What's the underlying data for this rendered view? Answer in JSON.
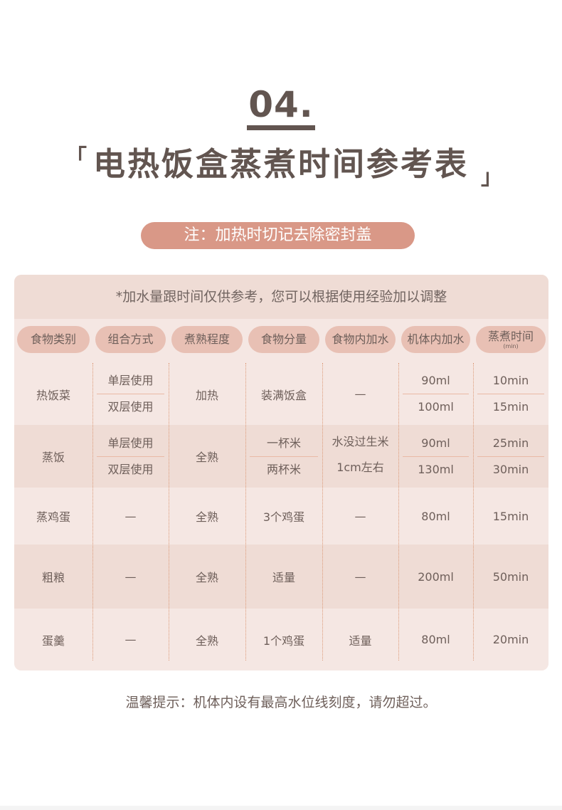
{
  "section_number": "04.",
  "title": "电热饭盒蒸煮时间参考表",
  "bracket_open": "「",
  "bracket_close": "」",
  "note": "注：加热时切记去除密封盖",
  "table": {
    "subtitle": "*加水量跟时间仅供参考，您可以根据使用经验加以调整",
    "headers": [
      "食物类别",
      "组合方式",
      "煮熟程度",
      "食物分量",
      "食物内加水",
      "机体内加水",
      "蒸煮时间"
    ],
    "time_unit": "(min)",
    "rows": [
      {
        "cells": [
          "热饭菜",
          [
            "单层使用",
            "双层使用"
          ],
          "加热",
          "装满饭盒",
          "—",
          [
            "90ml",
            "100ml"
          ],
          [
            "10min",
            "15min"
          ]
        ]
      },
      {
        "cells": [
          "蒸饭",
          [
            "单层使用",
            "双层使用"
          ],
          "全熟",
          [
            "一杯米",
            "两杯米"
          ],
          [
            "水没过生米",
            "1cm左右"
          ],
          [
            "90ml",
            "130ml"
          ],
          [
            "25min",
            "30min"
          ]
        ]
      },
      {
        "cells": [
          "蒸鸡蛋",
          "—",
          "全熟",
          "3个鸡蛋",
          "—",
          "80ml",
          "15min"
        ]
      },
      {
        "cells": [
          "粗粮",
          "—",
          "全熟",
          "适量",
          "—",
          "200ml",
          "50min"
        ]
      },
      {
        "cells": [
          "蛋羹",
          "—",
          "全熟",
          "1个鸡蛋",
          "适量",
          "80ml",
          "20min"
        ]
      }
    ]
  },
  "tip": "温馨提示：机体内设有最高水位线刻度，请勿超过。",
  "colors": {
    "title": "#625550",
    "accent_pill": "#d99887",
    "header_pill": "#e8c0b4",
    "row_light": "#f5e7e3",
    "row_dark": "#efdcd5",
    "divider": "#dc9a78"
  }
}
